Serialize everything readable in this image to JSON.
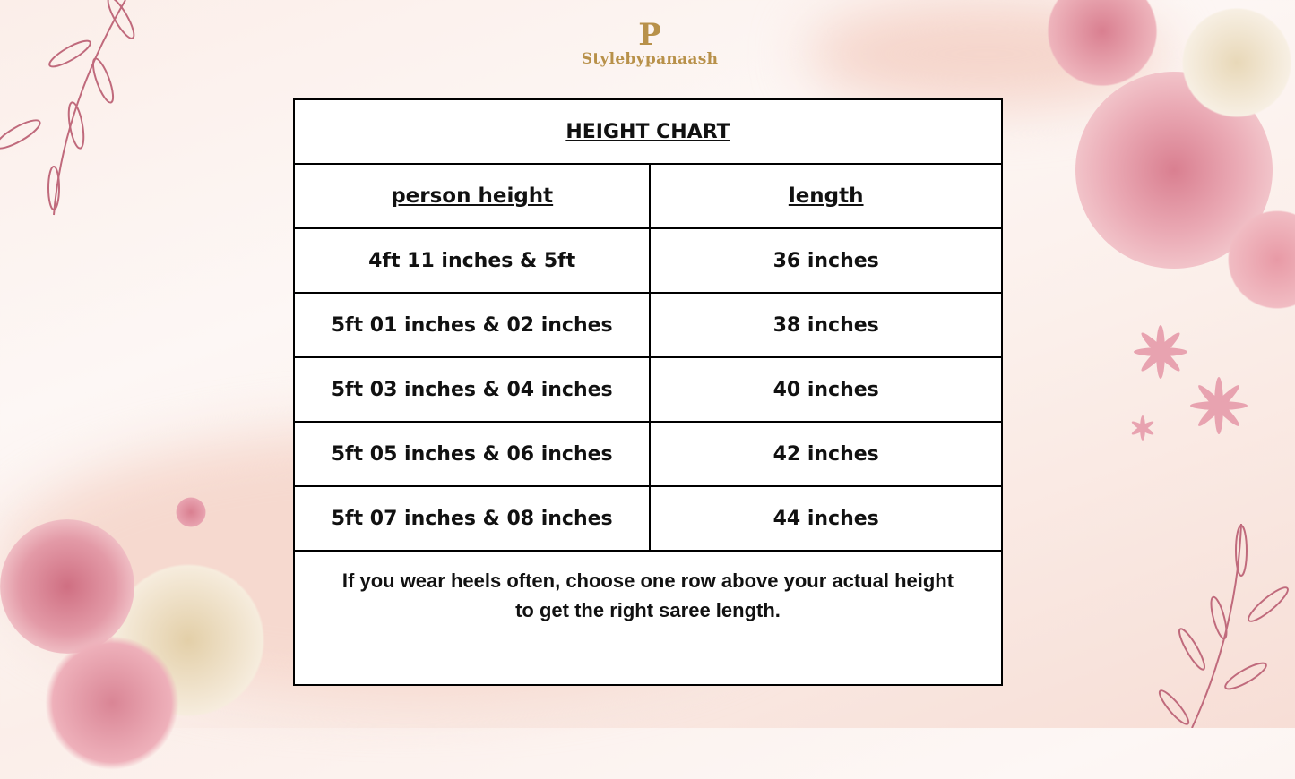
{
  "brand": {
    "name": "Stylebypanaash",
    "mark": "P",
    "color": "#b8914a"
  },
  "chart": {
    "title": "HEIGHT CHART",
    "columns": [
      "person height",
      "length"
    ],
    "rows": [
      {
        "height": "4ft 11 inches & 5ft",
        "length": "36 inches"
      },
      {
        "height": "5ft 01 inches & 02 inches",
        "length": "38 inches"
      },
      {
        "height": "5ft 03 inches & 04 inches",
        "length": "40 inches"
      },
      {
        "height": "5ft 05 inches & 06 inches",
        "length": "42 inches"
      },
      {
        "height": "5ft 07 inches & 08 inches",
        "length": "44 inches"
      }
    ],
    "note_line1": "If you wear heels often, choose one row above your actual height",
    "note_line2": "to get the right saree length."
  },
  "decor": {
    "accent": "#e8a3b0",
    "leaf": "#c06a7c"
  }
}
